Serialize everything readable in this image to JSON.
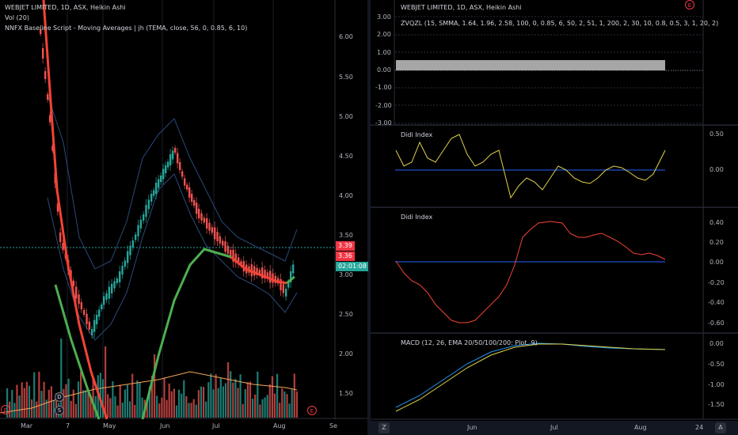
{
  "colors": {
    "up": "#26a69a",
    "down": "#ef5350",
    "baseline_up": "#4caf50",
    "baseline_down": "#f44336",
    "band": "#2a4a7a",
    "volume_ma": "#f5a65b",
    "didi_yellow": "#e0d34a",
    "didi_blue": "#2962ff",
    "didi_red": "#f44336",
    "macd_blue": "#2196f3",
    "macd_yellow": "#e0d34a",
    "price_line": "#26a69a"
  },
  "left": {
    "title": "WEBJET LIMITED, 1D, ASX, Heikin Ashi",
    "vol_label": "Vol (20)",
    "baseline_label": "NNFX Baseline Script - Moving Averages | jh (TEMA, close, 56, 0, 0.85, 6, 10)",
    "y_ticks": [
      "6.00",
      "5.50",
      "5.00",
      "4.50",
      "4.00",
      "3.50",
      "3.00",
      "2.50",
      "2.00",
      "1.50"
    ],
    "x_ticks": [
      "Mar",
      "7",
      "May",
      "Jun",
      "Jul",
      "Aug",
      "Se"
    ],
    "badges": {
      "red_top": "3.39",
      "red_bottom": "3.36",
      "timer": "02:01:08"
    },
    "markers": {
      "e_left": "E",
      "e_right": "E",
      "d": "D",
      "s": "S"
    }
  },
  "right": {
    "zvqzl": {
      "title": "WEBJET LIMITED, 1D, ASX, Heikin Ashi",
      "label": "ZVQZL (15, SMMA, 1.64, 1.96, 2.58, 100, 0, 0.85, 6, 50, 2, 51, 1, 200, 2, 30, 10, 0.8, 0.5, 3, 1, 20, 2)",
      "y_ticks": [
        "3.00",
        "2.00",
        "1.00",
        "0.00",
        "-1.00",
        "-2.00",
        "-3.00"
      ],
      "marker": "E"
    },
    "didi1": {
      "label": "Didi Index",
      "y_ticks": [
        "0.50",
        "0.00"
      ]
    },
    "didi2": {
      "label": "Didi Index",
      "y_ticks": [
        "0.40",
        "0.20",
        "0.00",
        "-0.20",
        "-0.40",
        "-0.60"
      ]
    },
    "macd": {
      "label": "MACD (12, 26, EMA 20/50/100/200: Plot, 9)",
      "y_ticks": [
        "0.00",
        "-0.50",
        "-1.00",
        "-1.50"
      ]
    },
    "x_ticks": [
      "Jun",
      "Jul",
      "Aug",
      "24"
    ],
    "corner_left": "Z",
    "corner_right": "A"
  }
}
